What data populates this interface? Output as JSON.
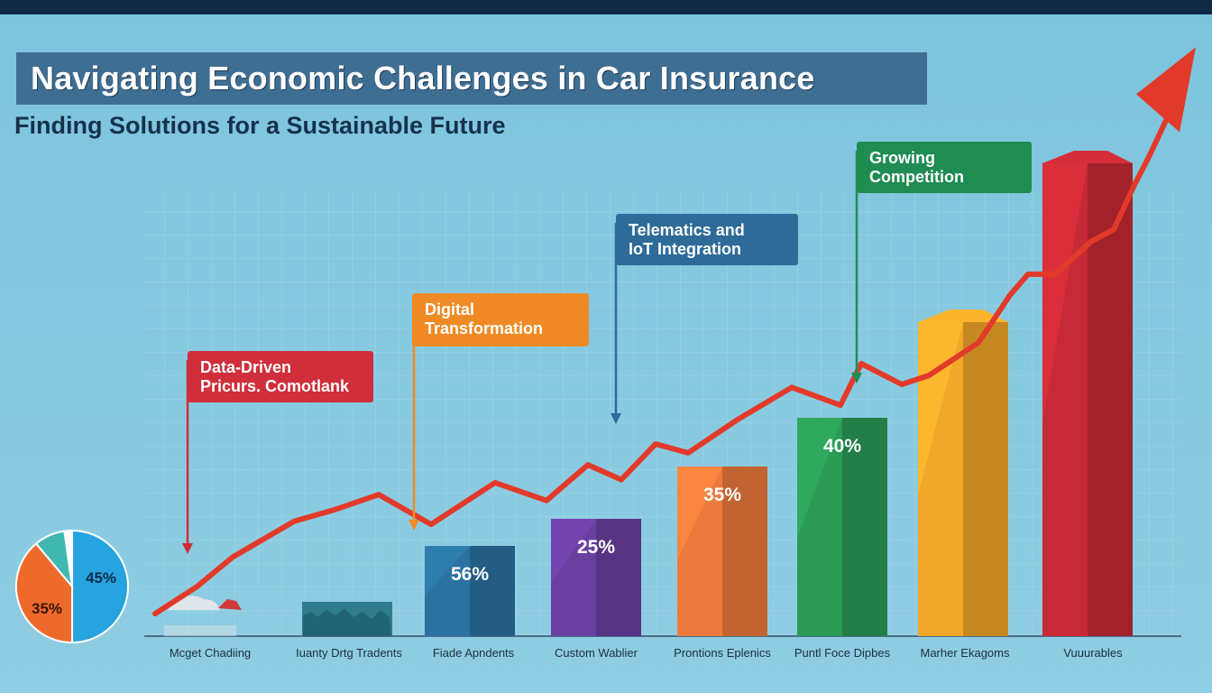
{
  "title": "Navigating Economic Challenges in Car Insurance",
  "subtitle": "Finding Solutions for a Sustainable Future",
  "colors": {
    "background": "#86c9e0",
    "title_bar": "#3f6e93",
    "trend_line": "#e23a2a"
  },
  "callouts": [
    {
      "line1": "Data-Driven",
      "line2": "Pricurs. Comotlank",
      "color": "#cf2e3a"
    },
    {
      "line1": "Digital",
      "line2": "Transformation",
      "color": "#f08a24"
    },
    {
      "line1": "Telematics and",
      "line2": "IoT Integration",
      "color": "#2e6b99"
    },
    {
      "line1": "Growing",
      "line2": "Competition",
      "color": "#1f8c52"
    }
  ],
  "chart_data": {
    "type": "bar",
    "categories": [
      "Mcget Chadiing",
      "Iuanty Drtg Tradents",
      "Fiade Apndents",
      "Custom Wablier",
      "Prontions Eplenics",
      "Puntl Foce Dipbes",
      "Marher Ekagoms",
      "Vuuurables"
    ],
    "bars": [
      {
        "value": null,
        "label": "",
        "color": "#c9dde6"
      },
      {
        "value": null,
        "label": "",
        "color": "#2f7d8c"
      },
      {
        "value": 56,
        "label": "56%",
        "color": "#2b72a0"
      },
      {
        "value": 25,
        "label": "25%",
        "color": "#6a3fa0"
      },
      {
        "value": 35,
        "label": "35%",
        "color": "#ec7a3c"
      },
      {
        "value": 40,
        "label": "40%",
        "color": "#2a9a55"
      },
      {
        "value": null,
        "label": "",
        "color": "#f1a72a"
      },
      {
        "value": null,
        "label": "",
        "color": "#c62a36"
      }
    ],
    "trend_line": {
      "color": "#e23a2a",
      "values": [
        3,
        12,
        22,
        28,
        34,
        38,
        43,
        33,
        47,
        41,
        53,
        48,
        60,
        57,
        68,
        79,
        73,
        87,
        80,
        83,
        94,
        110,
        117,
        117,
        128,
        132,
        147,
        157,
        170,
        174
      ]
    },
    "pie": {
      "slices": [
        {
          "value": 45,
          "label": "45%",
          "color": "#27a3e0"
        },
        {
          "value": 35,
          "label": "35%",
          "color": "#ee6a2c"
        },
        {
          "value": 8,
          "label": "",
          "color": "#3fb8b0"
        },
        {
          "value": 2,
          "label": "",
          "color": "#ffffff"
        }
      ]
    },
    "grid": true,
    "legend": "none"
  }
}
